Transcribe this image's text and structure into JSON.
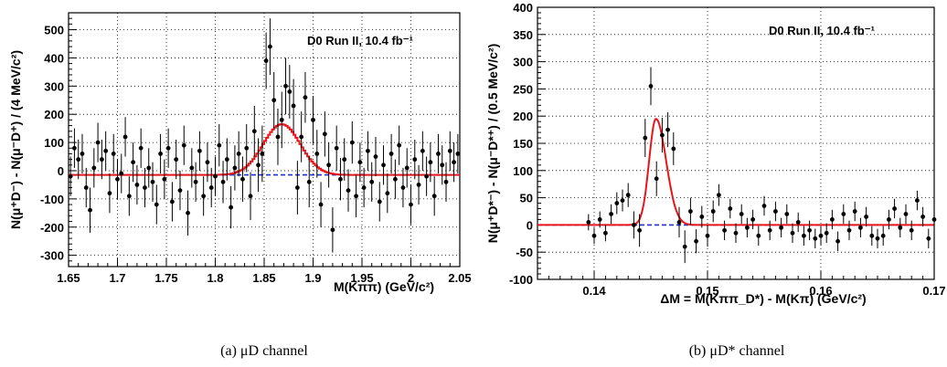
{
  "chart_data": [
    {
      "type": "scatter",
      "xlabel": "M(Kππ)    (GeV/c²)",
      "ylabel": "N(μ⁺D⁻) - N(μ⁻D⁺) / (4 MeV/c²)",
      "annotation": "D0 Run II, 10.4 fb⁻¹",
      "caption": "(a)  μD channel",
      "xlim": [
        1.65,
        2.05
      ],
      "ylim": [
        -340,
        560
      ],
      "xticks": [
        1.65,
        1.7,
        1.75,
        1.8,
        1.85,
        1.9,
        1.95,
        2.0,
        2.05
      ],
      "xtick_labels": [
        "1.65",
        "1.7",
        "1.75",
        "1.8",
        "1.85",
        "1.9",
        "1.95",
        "2",
        "2.05"
      ],
      "yticks": [
        -300,
        -200,
        -100,
        0,
        100,
        200,
        300,
        400,
        500
      ],
      "ytick_labels": [
        "-300",
        "-200",
        "-100",
        "0",
        "100",
        "200",
        "300",
        "400",
        "500"
      ],
      "grid": true,
      "fit": {
        "color": "#e8141a",
        "type": "gaussian-step",
        "baseline": -15,
        "amplitude": 180,
        "mean": 1.868,
        "sigma": 0.019
      },
      "background": {
        "color": "#1f2fd6",
        "style": "dashed",
        "value": -15
      },
      "series": [
        {
          "x": [
            1.652,
            1.656,
            1.66,
            1.664,
            1.668,
            1.672,
            1.676,
            1.68,
            1.684,
            1.688,
            1.692,
            1.696,
            1.7,
            1.704,
            1.708,
            1.712,
            1.716,
            1.72,
            1.724,
            1.728,
            1.732,
            1.736,
            1.74,
            1.744,
            1.748,
            1.752,
            1.756,
            1.76,
            1.764,
            1.768,
            1.772,
            1.776,
            1.78,
            1.784,
            1.788,
            1.792,
            1.796,
            1.8,
            1.804,
            1.808,
            1.812,
            1.816,
            1.82,
            1.824,
            1.828,
            1.832,
            1.836,
            1.84,
            1.844,
            1.848,
            1.852,
            1.856,
            1.86,
            1.864,
            1.868,
            1.872,
            1.876,
            1.88,
            1.884,
            1.888,
            1.892,
            1.896,
            1.9,
            1.904,
            1.908,
            1.912,
            1.916,
            1.92,
            1.924,
            1.928,
            1.932,
            1.936,
            1.94,
            1.944,
            1.948,
            1.952,
            1.956,
            1.96,
            1.964,
            1.968,
            1.972,
            1.976,
            1.98,
            1.984,
            1.988,
            1.992,
            1.996,
            2.0,
            2.004,
            2.008,
            2.012,
            2.016,
            2.02,
            2.024,
            2.028,
            2.032,
            2.036,
            2.04,
            2.044,
            2.048
          ],
          "y": [
            -20,
            80,
            40,
            60,
            -60,
            -140,
            10,
            100,
            40,
            70,
            -80,
            60,
            -30,
            -10,
            120,
            -90,
            30,
            -50,
            80,
            -60,
            10,
            -40,
            -120,
            60,
            -30,
            80,
            -110,
            40,
            -70,
            90,
            -150,
            10,
            -40,
            70,
            -90,
            30,
            -60,
            -20,
            90,
            -40,
            40,
            -130,
            10,
            60,
            -30,
            80,
            -90,
            140,
            20,
            60,
            390,
            440,
            250,
            120,
            180,
            300,
            280,
            230,
            -60,
            120,
            260,
            -40,
            180,
            60,
            -120,
            130,
            20,
            -210,
            80,
            -30,
            40,
            -70,
            100,
            -90,
            30,
            -60,
            70,
            -40,
            50,
            -110,
            20,
            -80,
            60,
            -30,
            90,
            -60,
            10,
            -120,
            40,
            -50,
            70,
            -20,
            30,
            -90,
            60,
            20,
            -40,
            70,
            30,
            60
          ],
          "err": [
            70,
            70,
            70,
            70,
            70,
            80,
            70,
            70,
            70,
            70,
            70,
            70,
            70,
            70,
            70,
            70,
            70,
            70,
            70,
            70,
            70,
            70,
            70,
            70,
            70,
            70,
            70,
            70,
            70,
            70,
            80,
            70,
            70,
            70,
            70,
            70,
            70,
            70,
            75,
            75,
            75,
            75,
            80,
            80,
            80,
            85,
            85,
            90,
            95,
            100,
            100,
            100,
            100,
            100,
            100,
            100,
            95,
            95,
            95,
            90,
            90,
            90,
            85,
            85,
            80,
            80,
            80,
            80,
            80,
            75,
            75,
            75,
            75,
            75,
            70,
            70,
            70,
            70,
            70,
            70,
            70,
            70,
            70,
            70,
            70,
            70,
            70,
            70,
            70,
            70,
            70,
            70,
            70,
            70,
            70,
            70,
            70,
            70,
            70,
            70
          ]
        }
      ]
    },
    {
      "type": "scatter",
      "xlabel": "ΔM = M(Kππ_D*) - M(Kπ)   (GeV/c²)",
      "ylabel": "N(μ⁺D*⁻) - N(μ⁻D*⁺)  / (0.5 MeV/c²)",
      "annotation": "D0 Run II, 10.4 fb⁻¹",
      "caption": "(b)  μD* channel",
      "xlim": [
        0.135,
        0.17
      ],
      "ylim": [
        -100,
        400
      ],
      "xticks": [
        0.14,
        0.15,
        0.16,
        0.17
      ],
      "xtick_labels": [
        "0.14",
        "0.15",
        "0.16",
        "0.17"
      ],
      "yticks": [
        -100,
        -50,
        0,
        50,
        100,
        150,
        200,
        250,
        300,
        350,
        400
      ],
      "ytick_labels": [
        "-100",
        "-50",
        "0",
        "50",
        "100",
        "150",
        "200",
        "250",
        "300",
        "350",
        "400"
      ],
      "grid": true,
      "fit": {
        "color": "#e8141a",
        "type": "asymmetric-peak",
        "baseline": 0,
        "amplitude": 195,
        "mean": 0.14545,
        "sigma_left": 0.0006,
        "sigma_right": 0.0009
      },
      "background": {
        "color": "#1f2fd6",
        "style": "dashed",
        "value": 0
      },
      "series": [
        {
          "x": [
            0.1395,
            0.14,
            0.1405,
            0.141,
            0.1415,
            0.142,
            0.1425,
            0.143,
            0.1435,
            0.144,
            0.1445,
            0.145,
            0.1455,
            0.146,
            0.1465,
            0.147,
            0.1475,
            0.148,
            0.1485,
            0.149,
            0.1495,
            0.15,
            0.1505,
            0.151,
            0.1515,
            0.152,
            0.1525,
            0.153,
            0.1535,
            0.154,
            0.1545,
            0.155,
            0.1555,
            0.156,
            0.1565,
            0.157,
            0.1575,
            0.158,
            0.1585,
            0.159,
            0.1595,
            0.16,
            0.1605,
            0.161,
            0.1615,
            0.162,
            0.1625,
            0.163,
            0.1635,
            0.164,
            0.1645,
            0.165,
            0.1655,
            0.166,
            0.1665,
            0.167,
            0.1675,
            0.168,
            0.1685,
            0.169,
            0.1695,
            0.17
          ],
          "y": [
            5,
            -20,
            10,
            -15,
            20,
            40,
            45,
            55,
            0,
            -10,
            160,
            255,
            85,
            165,
            175,
            140,
            5,
            -40,
            25,
            -30,
            15,
            -20,
            25,
            55,
            -10,
            30,
            -15,
            20,
            -5,
            10,
            -20,
            35,
            -10,
            25,
            -5,
            20,
            -15,
            5,
            -20,
            -10,
            -25,
            -20,
            -15,
            10,
            -30,
            20,
            -10,
            25,
            -5,
            15,
            -20,
            -25,
            -20,
            10,
            30,
            -5,
            20,
            -10,
            45,
            15,
            -25,
            10
          ],
          "err": [
            15,
            15,
            15,
            15,
            18,
            20,
            20,
            22,
            25,
            30,
            35,
            35,
            32,
            32,
            32,
            30,
            28,
            30,
            25,
            22,
            20,
            20,
            20,
            20,
            18,
            18,
            18,
            18,
            18,
            18,
            18,
            18,
            18,
            18,
            18,
            18,
            18,
            18,
            18,
            18,
            18,
            18,
            18,
            18,
            18,
            18,
            18,
            18,
            18,
            18,
            18,
            18,
            18,
            18,
            18,
            18,
            18,
            18,
            18,
            18,
            18,
            18
          ]
        }
      ]
    }
  ]
}
